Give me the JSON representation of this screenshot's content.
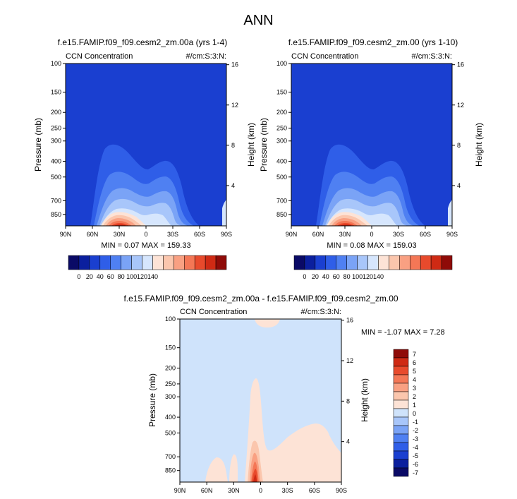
{
  "page": {
    "title": "ANN"
  },
  "colors": {
    "base_blue": "#1a3fd0",
    "diff_background": "#cfe3fb",
    "left_palette": [
      "#0a0a66",
      "#0b1f9e",
      "#1a3fd0",
      "#2f5ee8",
      "#4f80f2",
      "#7aa3f6",
      "#a8c6fa",
      "#d6e6fd",
      "#fde3d6",
      "#fbc6ad",
      "#f9a082",
      "#f47756",
      "#e84a2c",
      "#cf2a14",
      "#8f0b08"
    ],
    "diff_palette": [
      "#0a0a66",
      "#0b1f9e",
      "#1a3fd0",
      "#2f5ee8",
      "#4f80f2",
      "#7aa3f6",
      "#a8c6fa",
      "#cfe3fb",
      "#fde3d6",
      "#fbc6ad",
      "#f9a082",
      "#f47756",
      "#e84a2c",
      "#cf2a14",
      "#8f0b08"
    ]
  },
  "chart_data": [
    {
      "type": "heatmap",
      "title": "f.e15.FAMIP.f09_f09.cesm2_zm.00a (yrs 1-4)",
      "left_label": "CCN Concentration",
      "right_label": "#/cm:S:3:N:",
      "ylabel": "Pressure (mb)",
      "y2label": "Height (km)",
      "x_ticks": [
        "90N",
        "60N",
        "30N",
        "0",
        "30S",
        "60S",
        "90S"
      ],
      "y_ticks": [
        "100",
        "150",
        "200",
        "250",
        "300",
        "400",
        "500",
        "700",
        "850"
      ],
      "y2_ticks": [
        "16",
        "12",
        "8",
        "4"
      ],
      "stats": "MIN =  0.07  MAX = 159.33",
      "min": 0.07,
      "max": 159.33,
      "colorbar_labels": [
        "0",
        "20",
        "40",
        "60",
        "80",
        "100",
        "120",
        "140"
      ],
      "shape": {
        "plume_top_mb": 305,
        "peak_lat": 32,
        "secondary_lat": -20
      }
    },
    {
      "type": "heatmap",
      "title": "f.e15.FAMIP.f09_f09.cesm2_zm.00 (yrs 1-10)",
      "left_label": "CCN Concentration",
      "right_label": "#/cm:S:3:N:",
      "ylabel": "Pressure (mb)",
      "y2label": "Height (km)",
      "x_ticks": [
        "90N",
        "60N",
        "30N",
        "0",
        "30S",
        "60S",
        "90S"
      ],
      "y_ticks": [
        "100",
        "150",
        "200",
        "250",
        "300",
        "400",
        "500",
        "700",
        "850"
      ],
      "y2_ticks": [
        "16",
        "12",
        "8",
        "4"
      ],
      "stats": "MIN =  0.08  MAX = 159.03",
      "min": 0.08,
      "max": 159.03,
      "colorbar_labels": [
        "0",
        "20",
        "40",
        "60",
        "80",
        "100",
        "120",
        "140"
      ],
      "shape": {
        "plume_top_mb": 305,
        "peak_lat": 32,
        "secondary_lat": -20
      }
    },
    {
      "type": "heatmap",
      "title": "f.e15.FAMIP.f09_f09.cesm2_zm.00a - f.e15.FAMIP.f09_f09.cesm2_zm.00",
      "left_label": "CCN Concentration",
      "right_label": "#/cm:S:3:N:",
      "ylabel": "Pressure (mb)",
      "y2label": "Height (km)",
      "x_ticks": [
        "90N",
        "60N",
        "30N",
        "0",
        "30S",
        "60S",
        "90S"
      ],
      "y_ticks": [
        "100",
        "150",
        "200",
        "250",
        "300",
        "400",
        "500",
        "700",
        "850"
      ],
      "y2_ticks": [
        "16",
        "12",
        "8",
        "4"
      ],
      "stats": "MIN = -1.07  MAX =  7.28",
      "min": -1.07,
      "max": 7.28,
      "colorbar_labels": [
        "7",
        "6",
        "5",
        "4",
        "3",
        "2",
        "1",
        "0",
        "-1",
        "-2",
        "-3",
        "-4",
        "-5",
        "-6",
        "-7"
      ],
      "shape": {
        "peak_lat": 3,
        "column_top_mb": 235
      }
    }
  ]
}
